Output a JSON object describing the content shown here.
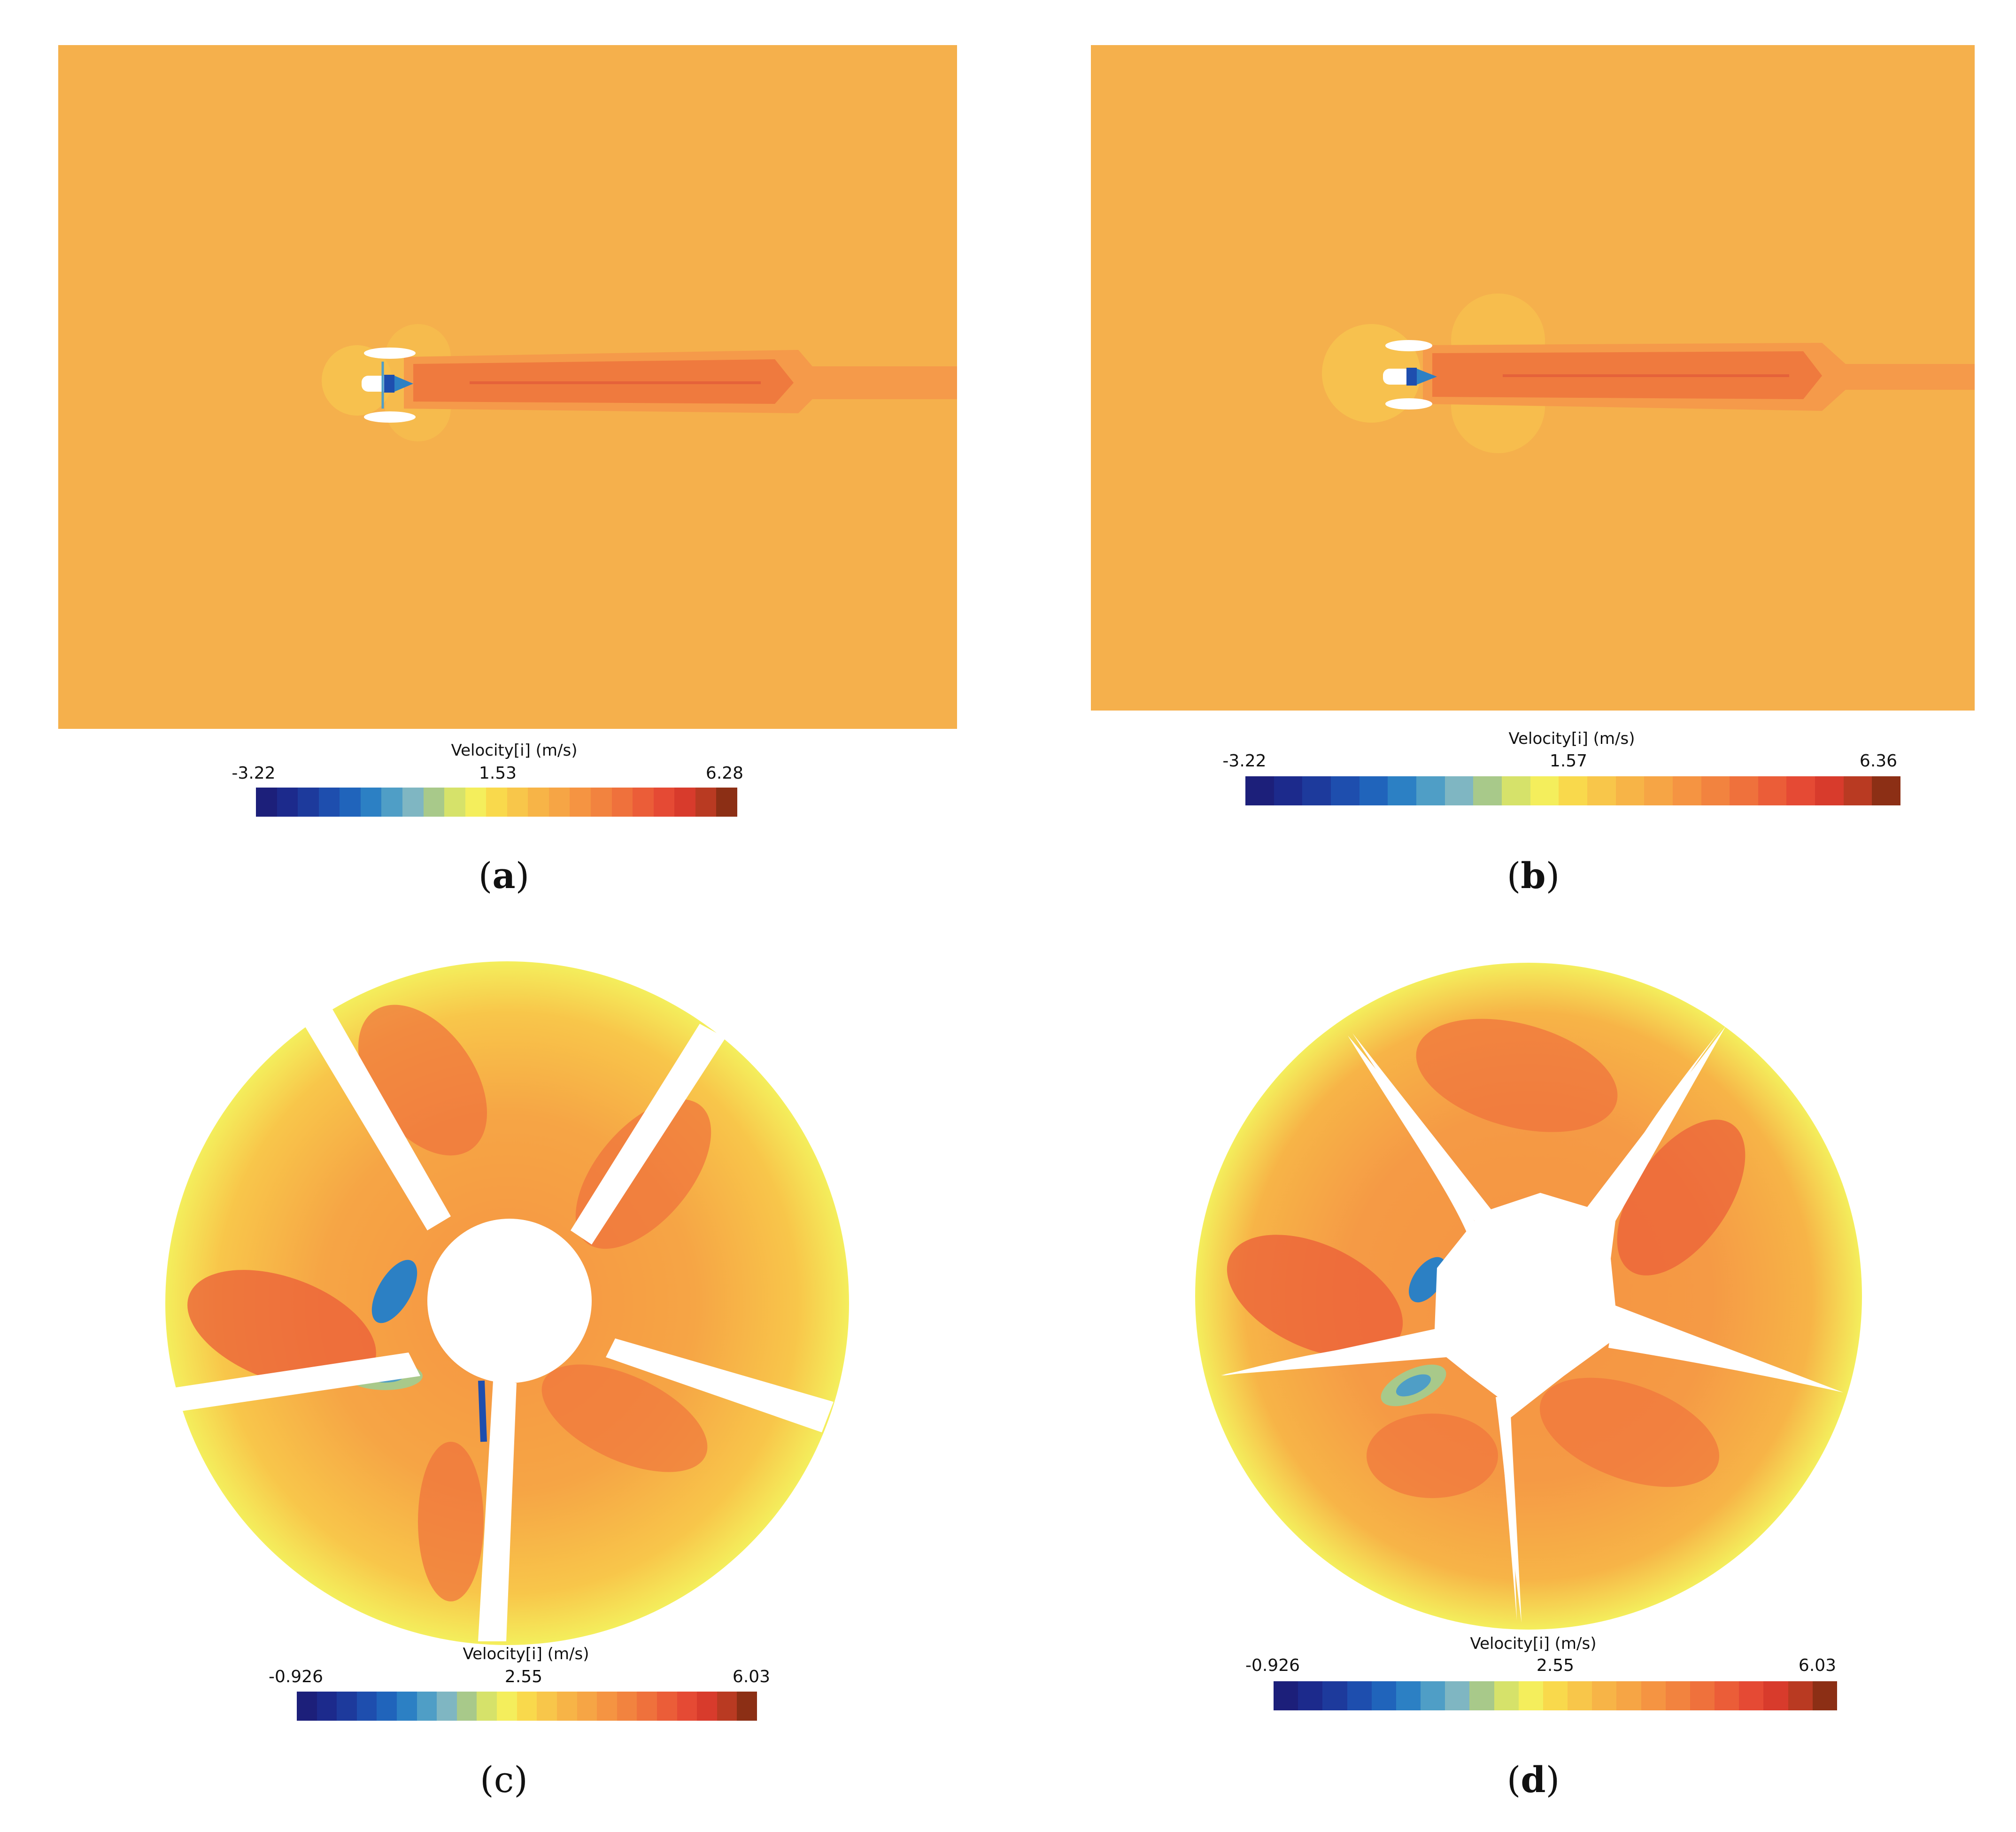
{
  "colors": {
    "background": "#f5b04c",
    "wake": "#f59a4a",
    "wake_core": "#ef7a3e",
    "near_field": "#f7c14e",
    "palette": [
      "#1c1f7a",
      "#1c2a8c",
      "#1d3a9c",
      "#1e4eae",
      "#2064bb",
      "#2c80c4",
      "#4f9ec6",
      "#7fb6c2",
      "#a8c98a",
      "#d6e26a",
      "#f4ee5c",
      "#f9d94c",
      "#f8c64a",
      "#f7b447",
      "#f6a545",
      "#f59442",
      "#f2833f",
      "#ef713c",
      "#eb5d38",
      "#e54a34",
      "#d83b2c",
      "#b93a22",
      "#8c2f15"
    ]
  },
  "panels": [
    {
      "id": "a",
      "caption_label": "a",
      "colorbar": {
        "title": "Velocity[i] (m/s)",
        "min_label": "-3.22",
        "mid_label": "1.53",
        "max_label": "6.28"
      }
    },
    {
      "id": "b",
      "caption_label": "b",
      "colorbar": {
        "title": "Velocity[i] (m/s)",
        "min_label": "-3.22",
        "mid_label": "1.57",
        "max_label": "6.36"
      }
    },
    {
      "id": "c",
      "caption_label": "c",
      "colorbar": {
        "title": "Velocity[i] (m/s)",
        "min_label": "-0.926",
        "mid_label": "2.55",
        "max_label": "6.03"
      }
    },
    {
      "id": "d",
      "caption_label": "d",
      "colorbar": {
        "title": "Velocity[i] (m/s)",
        "min_label": "-0.926",
        "mid_label": "2.55",
        "max_label": "6.03"
      }
    }
  ]
}
